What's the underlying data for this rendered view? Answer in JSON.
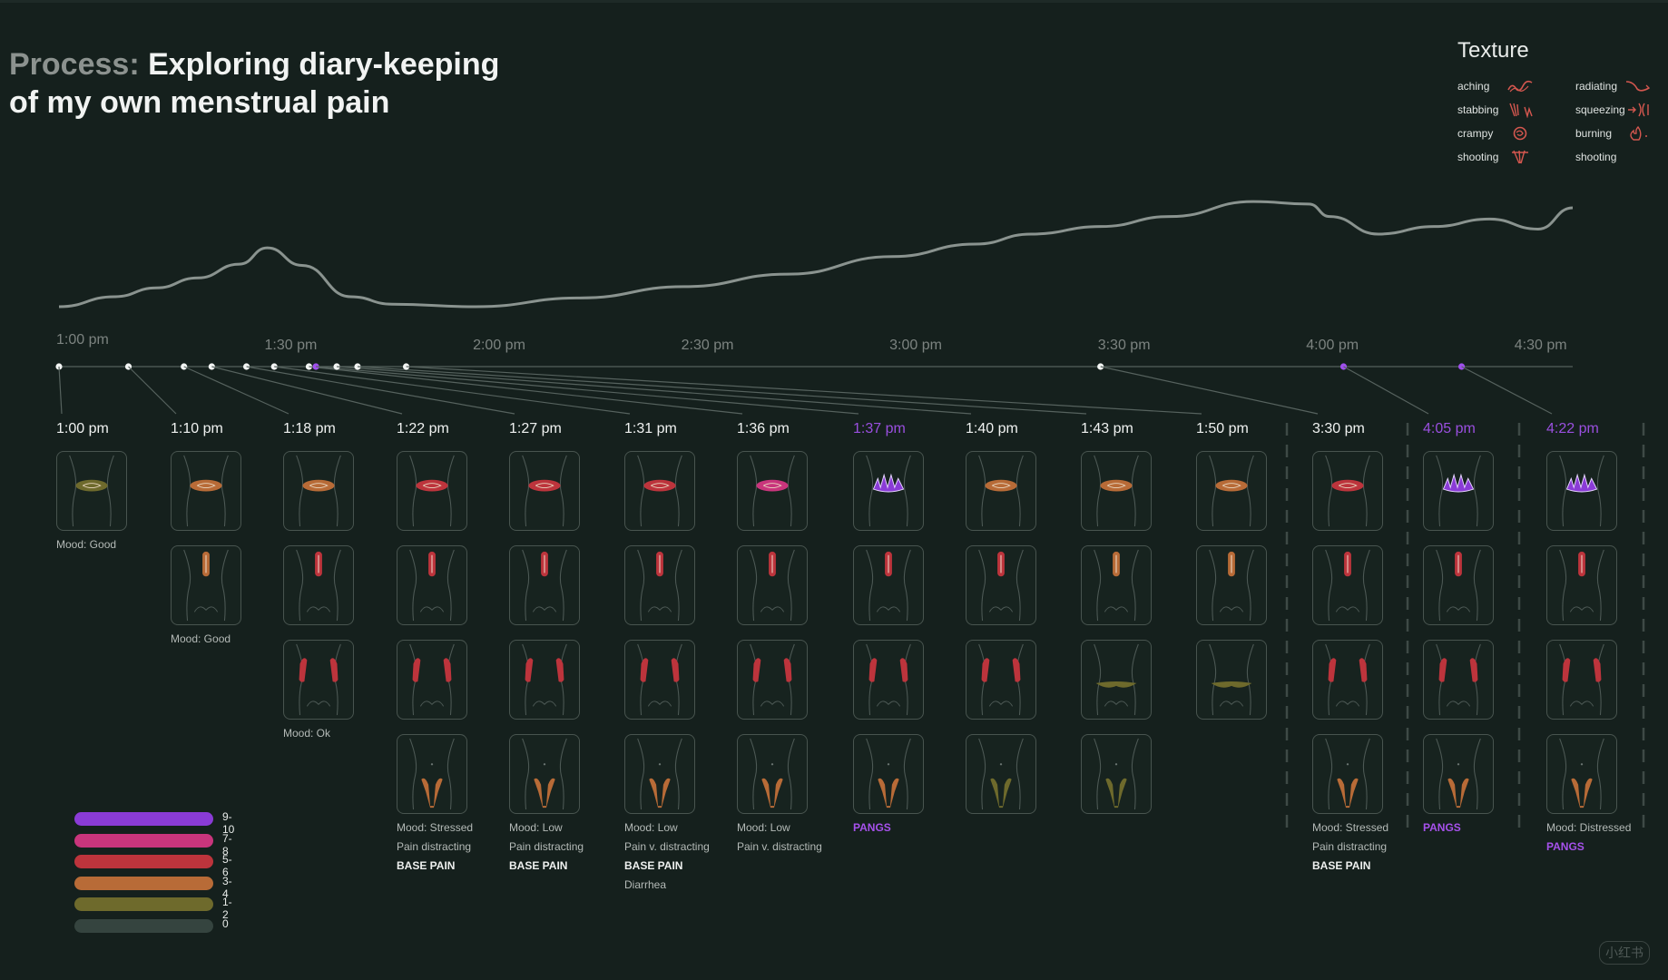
{
  "title": {
    "prefix": "Process:",
    "line1": "Exploring diary-keeping",
    "line2": "of my own menstrual pain"
  },
  "texture": {
    "title": "Texture",
    "items": [
      {
        "label": "aching",
        "icon": "aching-icon"
      },
      {
        "label": "radiating",
        "icon": "radiating-icon"
      },
      {
        "label": "stabbing",
        "icon": "stabbing-icon"
      },
      {
        "label": "squeezing",
        "icon": "squeezing-icon"
      },
      {
        "label": "crampy",
        "icon": "crampy-icon"
      },
      {
        "label": "burning",
        "icon": "burning-icon"
      },
      {
        "label": "shooting",
        "icon": "shooting-icon"
      },
      {
        "label": "shooting",
        "icon": ""
      }
    ]
  },
  "colors": {
    "level_0": "#35443f",
    "level_1_2": "#6e6a2c",
    "level_3_4": "#b86b37",
    "level_5_6": "#bd343c",
    "level_7_8": "#c9357c",
    "level_9_10": "#8a3bd6",
    "purple_text": "#9a4fe0"
  },
  "legend": [
    {
      "range": "9-10",
      "color": "#8a3bd6"
    },
    {
      "range": "7-8",
      "color": "#c9357c"
    },
    {
      "range": "5-6",
      "color": "#bd343c"
    },
    {
      "range": "3-4",
      "color": "#b86b37"
    },
    {
      "range": "1-2",
      "color": "#6e6a2c"
    },
    {
      "range": "0",
      "color": "#35443f"
    }
  ],
  "chart_data": {
    "type": "line",
    "title": "Process: Exploring diary-keeping of my own menstrual pain",
    "xlabel": "",
    "ylabel": "",
    "x_unit": "minutes after 1:00 pm",
    "ticks": [
      {
        "label": "1:00 pm",
        "value": 0
      },
      {
        "label": "1:30 pm",
        "value": 30
      },
      {
        "label": "2:00 pm",
        "value": 60
      },
      {
        "label": "2:30 pm",
        "value": 90
      },
      {
        "label": "3:00 pm",
        "value": 120
      },
      {
        "label": "3:30 pm",
        "value": 150
      },
      {
        "label": "4:00 pm",
        "value": 180
      },
      {
        "label": "4:30 pm",
        "value": 210
      }
    ],
    "xlim": [
      0,
      218
    ],
    "ylim": [
      0,
      1
    ],
    "intensity_curve": {
      "x": [
        0,
        8,
        14,
        20,
        26,
        30,
        35,
        42,
        48,
        60,
        75,
        90,
        105,
        120,
        132,
        140,
        150,
        160,
        172,
        180,
        183,
        190,
        198,
        206,
        213,
        218
      ],
      "y": [
        0.0,
        0.08,
        0.15,
        0.23,
        0.34,
        0.47,
        0.33,
        0.08,
        0.02,
        0.0,
        0.07,
        0.16,
        0.26,
        0.4,
        0.5,
        0.58,
        0.64,
        0.72,
        0.84,
        0.82,
        0.72,
        0.58,
        0.64,
        0.7,
        0.62,
        0.79
      ]
    },
    "log_entries": [
      {
        "time": "1:00 pm",
        "minute": 0,
        "highlight": false,
        "cells": [
          2,
          null,
          null,
          null
        ],
        "notes": [
          {
            "text": "Mood: Good",
            "style": ""
          }
        ]
      },
      {
        "time": "1:10 pm",
        "minute": 10,
        "highlight": false,
        "cells": [
          3,
          3,
          null,
          null
        ],
        "notes": [
          {
            "text": "Mood: Good",
            "style": ""
          }
        ]
      },
      {
        "time": "1:18 pm",
        "minute": 18,
        "highlight": false,
        "cells": [
          3,
          5,
          5,
          null
        ],
        "notes": [
          {
            "text": "Mood: Ok",
            "style": ""
          }
        ]
      },
      {
        "time": "1:22 pm",
        "minute": 22,
        "highlight": false,
        "cells": [
          5,
          5,
          5,
          3
        ],
        "notes": [
          {
            "text": "Mood: Stressed",
            "style": ""
          },
          {
            "text": "Pain distracting",
            "style": ""
          },
          {
            "text": "BASE PAIN",
            "style": "strong"
          }
        ]
      },
      {
        "time": "1:27 pm",
        "minute": 27,
        "highlight": false,
        "cells": [
          5,
          5,
          5,
          3
        ],
        "notes": [
          {
            "text": "Mood: Low",
            "style": ""
          },
          {
            "text": "Pain distracting",
            "style": ""
          },
          {
            "text": "BASE PAIN",
            "style": "strong"
          }
        ]
      },
      {
        "time": "1:31 pm",
        "minute": 31,
        "highlight": false,
        "cells": [
          5,
          5,
          5,
          3
        ],
        "notes": [
          {
            "text": "Mood: Low",
            "style": ""
          },
          {
            "text": "Pain v. distracting",
            "style": ""
          },
          {
            "text": "BASE PAIN",
            "style": "strong"
          },
          {
            "text": "Diarrhea",
            "style": ""
          }
        ]
      },
      {
        "time": "1:36 pm",
        "minute": 36,
        "highlight": false,
        "cells": [
          7,
          5,
          5,
          3
        ],
        "notes": [
          {
            "text": "Mood: Low",
            "style": ""
          },
          {
            "text": "Pain v. distracting",
            "style": ""
          }
        ]
      },
      {
        "time": "1:37 pm",
        "minute": 37,
        "highlight": true,
        "cells": [
          9,
          5,
          5,
          3
        ],
        "notes": [
          {
            "text": "PANGS",
            "style": "pangs"
          }
        ]
      },
      {
        "time": "1:40 pm",
        "minute": 40,
        "highlight": false,
        "cells": [
          3,
          5,
          5,
          2
        ],
        "notes": []
      },
      {
        "time": "1:43 pm",
        "minute": 43,
        "highlight": false,
        "cells": [
          3,
          3,
          2,
          2
        ],
        "notes": []
      },
      {
        "time": "1:50 pm",
        "minute": 50,
        "highlight": false,
        "cells": [
          3,
          3,
          2,
          null
        ],
        "notes": []
      },
      {
        "time": "3:30 pm",
        "minute": 150,
        "highlight": false,
        "cells": [
          5,
          5,
          5,
          3
        ],
        "notes": [
          {
            "text": "Mood: Stressed",
            "style": ""
          },
          {
            "text": "Pain distracting",
            "style": ""
          },
          {
            "text": "BASE PAIN",
            "style": "strong"
          }
        ]
      },
      {
        "time": "4:05 pm",
        "minute": 185,
        "highlight": true,
        "cells": [
          9,
          5,
          5,
          3
        ],
        "notes": [
          {
            "text": "PANGS",
            "style": "pangs"
          }
        ]
      },
      {
        "time": "4:22 pm",
        "minute": 202,
        "highlight": true,
        "cells": [
          9,
          5,
          5,
          3
        ],
        "notes": [
          {
            "text": "Mood: Distressed",
            "style": ""
          },
          {
            "text": "PANGS",
            "style": "pangs"
          }
        ]
      }
    ]
  },
  "watermark": "小红书"
}
